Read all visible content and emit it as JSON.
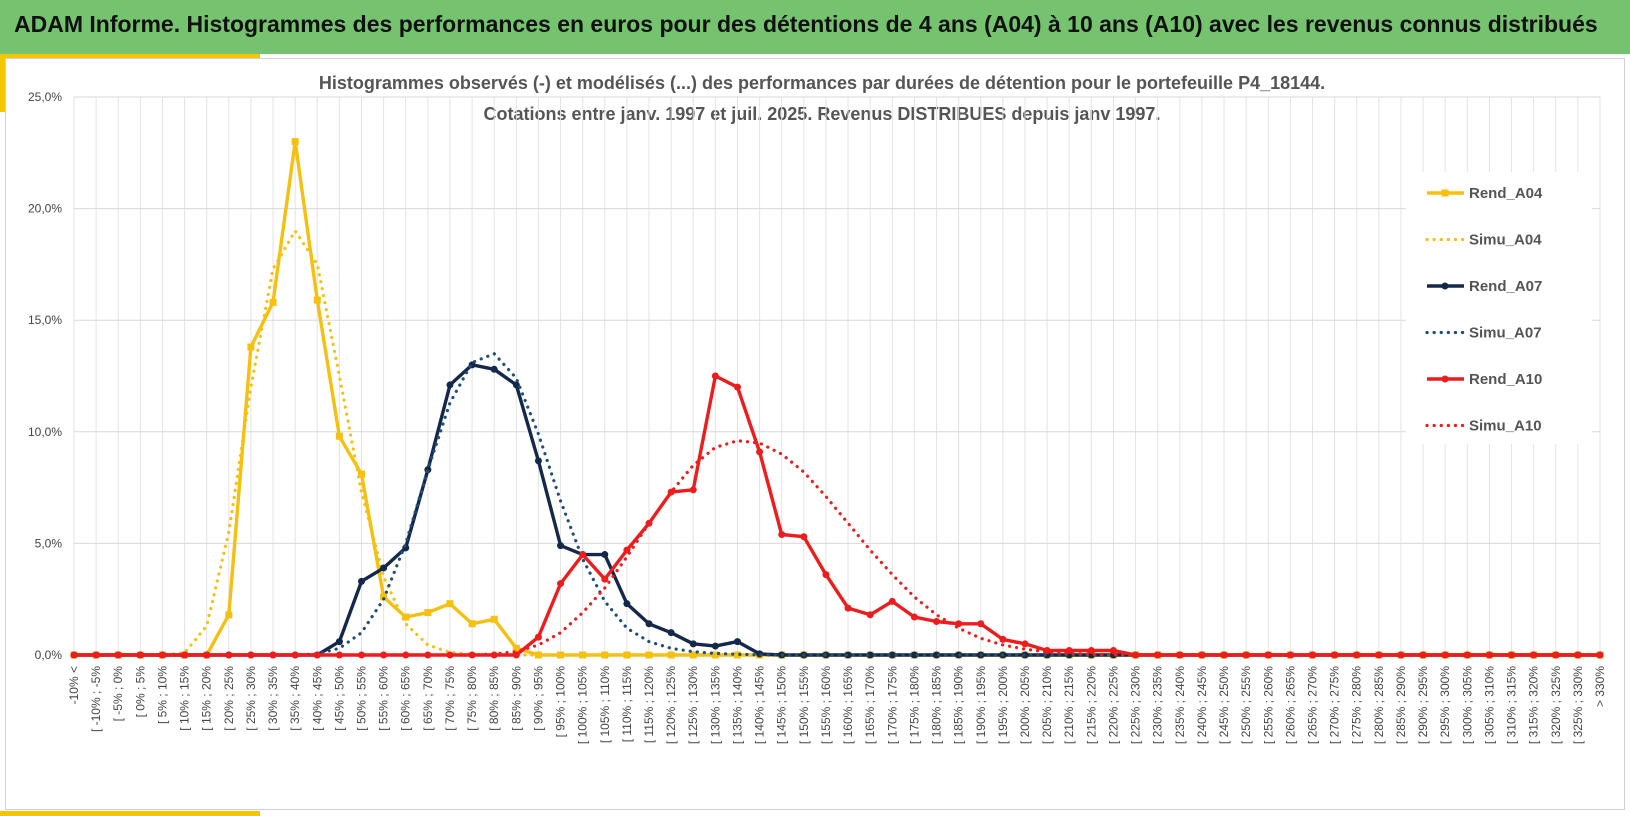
{
  "header": {
    "title": "ADAM Informe. Histogrammes des performances en euros pour des détentions de 4 ans (A04) à 10 ans (A10) avec les revenus connus distribués"
  },
  "chart_data": {
    "type": "line",
    "title_line1": "Histogrammes observés (-) et modélisés (...) des performances par durées de détention pour le portefeuille P4_18144.",
    "title_line2": "Cotations entre janv. 1997 et juil. 2025. Revenus DISTRIBUES depuis janv 1997.",
    "ylim": [
      0,
      25
    ],
    "ytick_labels": [
      "0,0%",
      "5,0%",
      "10,0%",
      "15,0%",
      "20,0%",
      "25,0%"
    ],
    "grid": true,
    "legend_position": "right",
    "categories": [
      "-10% <",
      "[ -10% ; -5%",
      "[ -5% ; 0%",
      "[ 0% ; 5%",
      "[ 5% ; 10%",
      "[ 10% ; 15%",
      "[ 15% ; 20%",
      "[ 20% ; 25%",
      "[ 25% ; 30%",
      "[ 30% ; 35%",
      "[ 35% ; 40%",
      "[ 40% ; 45%",
      "[ 45% ; 50%",
      "[ 50% ; 55%",
      "[ 55% ; 60%",
      "[ 60% ; 65%",
      "[ 65% ; 70%",
      "[ 70% ; 75%",
      "[ 75% ; 80%",
      "[ 80% ; 85%",
      "[ 85% ; 90%",
      "[ 90% ; 95%",
      "[ 95% ; 100%",
      "[ 100% ; 105%",
      "[ 105% ; 110%",
      "[ 110% ; 115%",
      "[ 115% ; 120%",
      "[ 120% ; 125%",
      "[ 125% ; 130%",
      "[ 130% ; 135%",
      "[ 135% ; 140%",
      "[ 140% ; 145%",
      "[ 145% ; 150%",
      "[ 150% ; 155%",
      "[ 155% ; 160%",
      "[ 160% ; 165%",
      "[ 165% ; 170%",
      "[ 170% ; 175%",
      "[ 175% ; 180%",
      "[ 180% ; 185%",
      "[ 185% ; 190%",
      "[ 190% ; 195%",
      "[ 195% ; 200%",
      "[ 200% ; 205%",
      "[ 205% ; 210%",
      "[ 210% ; 215%",
      "[ 215% ; 220%",
      "[ 220% ; 225%",
      "[ 225% ; 230%",
      "[ 230% ; 235%",
      "[ 235% ; 240%",
      "[ 240% ; 245%",
      "[ 245% ; 250%",
      "[ 250% ; 255%",
      "[ 255% ; 260%",
      "[ 260% ; 265%",
      "[ 265% ; 270%",
      "[ 270% ; 275%",
      "[ 275% ; 280%",
      "[ 280% ; 285%",
      "[ 285% ; 290%",
      "[ 290% ; 295%",
      "[ 295% ; 300%",
      "[ 300% ; 305%",
      "[ 305% ; 310%",
      "[ 310% ; 315%",
      "[ 315% ; 320%",
      "[ 320% ; 325%",
      "[ 325% ; 330%",
      "> 330%"
    ],
    "series": [
      {
        "name": "Rend_A04",
        "color": "#f5c010",
        "style": "solid",
        "marker": "square",
        "values": [
          0,
          0,
          0,
          0,
          0,
          0,
          0,
          1.8,
          13.8,
          15.8,
          23.0,
          15.9,
          9.8,
          8.1,
          2.6,
          1.7,
          1.9,
          2.3,
          1.4,
          1.6,
          0.3,
          0,
          0,
          0,
          0,
          0,
          0,
          0,
          0,
          0,
          0,
          0,
          0,
          0,
          0,
          0,
          0,
          0,
          0,
          0,
          0,
          0,
          0,
          0,
          0,
          0,
          0,
          0,
          0,
          0,
          0,
          0,
          0,
          0,
          0,
          0,
          0,
          0,
          0,
          0,
          0,
          0,
          0,
          0,
          0,
          0,
          0,
          0,
          0,
          0
        ]
      },
      {
        "name": "Simu_A04",
        "color": "#f5c010",
        "style": "dotted",
        "marker": "none",
        "values": [
          0,
          0,
          0,
          0,
          0,
          0.1,
          1.3,
          5.5,
          12.0,
          17.3,
          19.0,
          17.5,
          12.5,
          7.3,
          3.5,
          1.4,
          0.45,
          0.12,
          0.03,
          0.01,
          0,
          0,
          0,
          0,
          0,
          0,
          0,
          0,
          0,
          0,
          0,
          0,
          0,
          0,
          0,
          0,
          0,
          0,
          0,
          0,
          0,
          0,
          0,
          0,
          0,
          0,
          0,
          0,
          0,
          0,
          0,
          0,
          0,
          0,
          0,
          0,
          0,
          0,
          0,
          0,
          0,
          0,
          0,
          0,
          0,
          0,
          0,
          0,
          0,
          0
        ]
      },
      {
        "name": "Rend_A07",
        "color": "#14284b",
        "style": "solid",
        "marker": "circle",
        "values": [
          0,
          0,
          0,
          0,
          0,
          0,
          0,
          0,
          0,
          0,
          0,
          0,
          0.6,
          3.3,
          3.9,
          4.8,
          8.3,
          12.1,
          13.0,
          12.8,
          12.1,
          8.7,
          4.9,
          4.5,
          4.5,
          2.3,
          1.4,
          1.0,
          0.5,
          0.4,
          0.6,
          0.05,
          0,
          0,
          0,
          0,
          0,
          0,
          0,
          0,
          0,
          0,
          0,
          0,
          0,
          0,
          0,
          0,
          0,
          0,
          0,
          0,
          0,
          0,
          0,
          0,
          0,
          0,
          0,
          0,
          0,
          0,
          0,
          0,
          0,
          0,
          0,
          0,
          0,
          0
        ]
      },
      {
        "name": "Simu_A07",
        "color": "#1f4e79",
        "style": "dotted",
        "marker": "none",
        "values": [
          0,
          0,
          0,
          0,
          0,
          0,
          0,
          0,
          0,
          0,
          0,
          0.05,
          0.3,
          1.0,
          2.5,
          5.0,
          8.3,
          11.3,
          13.1,
          13.5,
          12.4,
          9.9,
          6.9,
          4.3,
          2.4,
          1.2,
          0.6,
          0.3,
          0.15,
          0.07,
          0.03,
          0.01,
          0,
          0,
          0,
          0,
          0,
          0,
          0,
          0,
          0,
          0,
          0,
          0,
          0,
          0,
          0,
          0,
          0,
          0,
          0,
          0,
          0,
          0,
          0,
          0,
          0,
          0,
          0,
          0,
          0,
          0,
          0,
          0,
          0,
          0,
          0,
          0,
          0,
          0
        ]
      },
      {
        "name": "Rend_A10",
        "color": "#ee1c1c",
        "style": "solid",
        "marker": "circle",
        "values": [
          0,
          0,
          0,
          0,
          0,
          0,
          0,
          0,
          0,
          0,
          0,
          0,
          0,
          0,
          0,
          0,
          0,
          0,
          0,
          0,
          0,
          0.8,
          3.2,
          4.5,
          3.4,
          4.7,
          5.9,
          7.3,
          7.4,
          12.5,
          12.0,
          9.1,
          5.4,
          5.3,
          3.6,
          2.1,
          1.8,
          2.4,
          1.7,
          1.5,
          1.4,
          1.4,
          0.7,
          0.5,
          0.2,
          0.2,
          0.2,
          0.2,
          0,
          0,
          0,
          0,
          0,
          0,
          0,
          0,
          0,
          0,
          0,
          0,
          0,
          0,
          0,
          0,
          0,
          0,
          0,
          0,
          0,
          0
        ]
      },
      {
        "name": "Simu_A10",
        "color": "#ee1c1c",
        "style": "dotted",
        "marker": "none",
        "values": [
          0,
          0,
          0,
          0,
          0,
          0,
          0,
          0,
          0,
          0,
          0,
          0,
          0,
          0,
          0,
          0,
          0,
          0,
          0,
          0.05,
          0.15,
          0.45,
          1.0,
          1.9,
          3.0,
          4.4,
          5.9,
          7.3,
          8.5,
          9.3,
          9.6,
          9.5,
          9.0,
          8.2,
          7.1,
          5.9,
          4.7,
          3.6,
          2.6,
          1.8,
          1.2,
          0.75,
          0.45,
          0.26,
          0.14,
          0.07,
          0.03,
          0.01,
          0,
          0,
          0,
          0,
          0,
          0,
          0,
          0,
          0,
          0,
          0,
          0,
          0,
          0,
          0,
          0,
          0,
          0,
          0,
          0,
          0,
          0
        ]
      }
    ]
  }
}
